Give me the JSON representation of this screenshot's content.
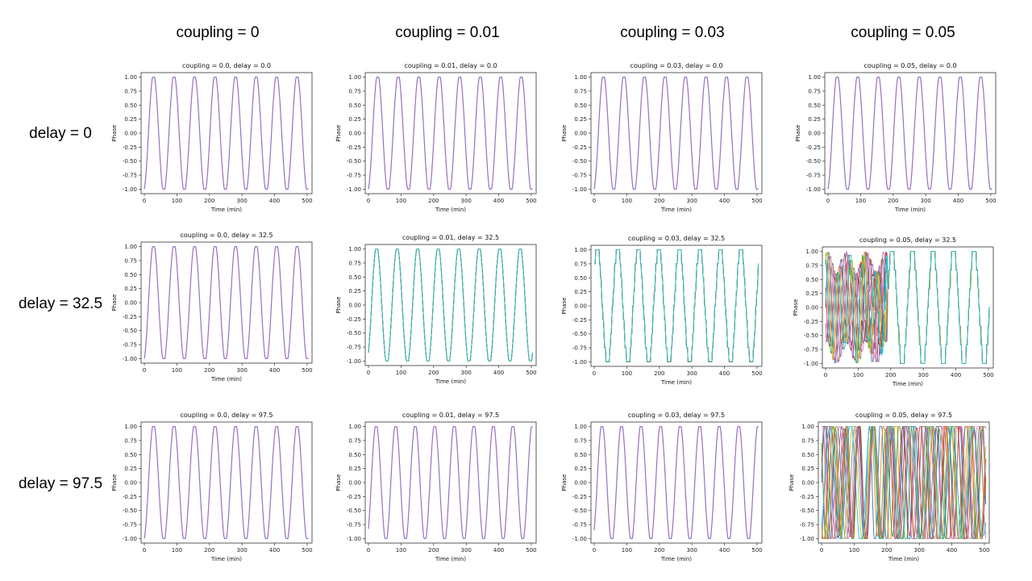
{
  "column_headers": [
    "coupling = 0",
    "coupling = 0.01",
    "coupling = 0.03",
    "coupling = 0.05"
  ],
  "row_headers": [
    "delay = 0",
    "delay = 32.5",
    "delay = 97.5"
  ],
  "colors": {
    "single_trace": "#9467bd",
    "palette": [
      "#1f77b4",
      "#ff7f0e",
      "#2ca02c",
      "#d62728",
      "#9467bd",
      "#8c564b",
      "#e377c2",
      "#7f7f7f",
      "#bcbd22",
      "#17becf"
    ]
  },
  "chart_data": [
    {
      "type": "line",
      "title": "coupling = 0.0, delay = 0.0",
      "coupling": 0,
      "delay": 0,
      "xlabel": "Time (min)",
      "ylabel": "Phase",
      "xlim": [
        0,
        500
      ],
      "ylim": [
        -1.0,
        1.0
      ],
      "xticks": [
        0,
        100,
        200,
        300,
        400,
        500
      ],
      "yticks": [
        -1.0,
        -0.75,
        -0.5,
        -0.25,
        0.0,
        0.25,
        0.5,
        0.75,
        1.0
      ],
      "period_min": 63,
      "x_range": [
        0,
        505
      ],
      "start_phase": -0.95,
      "end_phase": 0.08,
      "dynamics": "synchronized",
      "num_series": 1
    },
    {
      "type": "line",
      "title": "coupling = 0.01, delay = 0.0",
      "coupling": 0.01,
      "delay": 0,
      "xlabel": "Time (min)",
      "ylabel": "Phase",
      "xlim": [
        0,
        500
      ],
      "ylim": [
        -1.0,
        1.0
      ],
      "xticks": [
        0,
        100,
        200,
        300,
        400,
        500
      ],
      "yticks": [
        -1.0,
        -0.75,
        -0.5,
        -0.25,
        0.0,
        0.25,
        0.5,
        0.75,
        1.0
      ],
      "period_min": 63,
      "x_range": [
        0,
        505
      ],
      "start_phase": -0.95,
      "end_phase": 0.08,
      "dynamics": "synchronized",
      "num_series": 1
    },
    {
      "type": "line",
      "title": "coupling = 0.03, delay = 0.0",
      "coupling": 0.03,
      "delay": 0,
      "xlabel": "Time (min)",
      "ylabel": "Phase",
      "xlim": [
        0,
        500
      ],
      "ylim": [
        -1.0,
        1.0
      ],
      "xticks": [
        0,
        100,
        200,
        300,
        400,
        500
      ],
      "yticks": [
        -1.0,
        -0.75,
        -0.5,
        -0.25,
        0.0,
        0.25,
        0.5,
        0.75,
        1.0
      ],
      "period_min": 63,
      "x_range": [
        0,
        505
      ],
      "start_phase": -0.95,
      "end_phase": 0.08,
      "dynamics": "synchronized",
      "num_series": 1
    },
    {
      "type": "line",
      "title": "coupling = 0.05, delay = 0.0",
      "coupling": 0.05,
      "delay": 0,
      "xlabel": "Time (min)",
      "ylabel": "Phase",
      "xlim": [
        0,
        500
      ],
      "ylim": [
        -1.0,
        1.0
      ],
      "xticks": [
        0,
        100,
        200,
        300,
        400,
        500
      ],
      "yticks": [
        -1.0,
        -0.75,
        -0.5,
        -0.25,
        0.0,
        0.25,
        0.5,
        0.75,
        1.0
      ],
      "period_min": 63,
      "x_range": [
        0,
        505
      ],
      "start_phase": -0.95,
      "end_phase": 0.08,
      "dynamics": "synchronized",
      "num_series": 1
    },
    {
      "type": "line",
      "title": "coupling = 0.0, delay = 32.5",
      "coupling": 0,
      "delay": 32.5,
      "xlabel": "Time (min)",
      "ylabel": "Phase",
      "xlim": [
        0,
        500
      ],
      "ylim": [
        -1.0,
        1.0
      ],
      "xticks": [
        0,
        100,
        200,
        300,
        400,
        500
      ],
      "yticks": [
        -1.0,
        -0.75,
        -0.5,
        -0.25,
        0.0,
        0.25,
        0.5,
        0.75,
        1.0
      ],
      "period_min": 63,
      "x_range": [
        0,
        505
      ],
      "start_phase": -0.95,
      "end_phase": 0.08,
      "dynamics": "synchronized",
      "num_series": 1
    },
    {
      "type": "line",
      "title": "coupling = 0.01, delay = 32.5",
      "coupling": 0.01,
      "delay": 32.5,
      "xlabel": "Time (min)",
      "ylabel": "Phase",
      "xlim": [
        0,
        500
      ],
      "ylim": [
        -1.0,
        1.0
      ],
      "xticks": [
        0,
        100,
        200,
        300,
        400,
        500
      ],
      "yticks": [
        -1.0,
        -0.75,
        -0.5,
        -0.25,
        0.0,
        0.25,
        0.5,
        0.75,
        1.0
      ],
      "period_min": 63,
      "x_range": [
        0,
        505
      ],
      "start_phase": -0.8,
      "end_phase": 0.85,
      "dynamics": "near-synchronized",
      "num_series": 10
    },
    {
      "type": "line",
      "title": "coupling = 0.03, delay = 32.5",
      "coupling": 0.03,
      "delay": 32.5,
      "xlabel": "Time (min)",
      "ylabel": "Phase",
      "xlim": [
        0,
        500
      ],
      "ylim": [
        -1.0,
        1.0
      ],
      "xticks": [
        0,
        100,
        200,
        300,
        400,
        500
      ],
      "yticks": [
        -1.0,
        -0.75,
        -0.5,
        -0.25,
        0.0,
        0.25,
        0.5,
        0.75,
        1.0
      ],
      "period_min": 63,
      "x_range": [
        0,
        505
      ],
      "start_phase": 0.6,
      "end_phase": -0.9,
      "dynamics": "stepped",
      "num_series": 10
    },
    {
      "type": "line",
      "title": "coupling = 0.05, delay = 32.5",
      "coupling": 0.05,
      "delay": 32.5,
      "xlabel": "Time (min)",
      "ylabel": "Phase",
      "xlim": [
        0,
        500
      ],
      "ylim": [
        -1.0,
        1.0
      ],
      "xticks": [
        0,
        100,
        200,
        300,
        400,
        500
      ],
      "yticks": [
        -1.0,
        -0.75,
        -0.5,
        -0.25,
        0.0,
        0.25,
        0.5,
        0.75,
        1.0
      ],
      "period_min": 63,
      "x_range": [
        0,
        505
      ],
      "start_phase": 0.0,
      "end_phase": -0.3,
      "dynamics": "chaotic-then-stepped",
      "num_series": 10
    },
    {
      "type": "line",
      "title": "coupling = 0.0, delay = 97.5",
      "coupling": 0,
      "delay": 97.5,
      "xlabel": "Time (min)",
      "ylabel": "Phase",
      "xlim": [
        0,
        500
      ],
      "ylim": [
        -1.0,
        1.0
      ],
      "xticks": [
        0,
        100,
        200,
        300,
        400,
        500
      ],
      "yticks": [
        -1.0,
        -0.75,
        -0.5,
        -0.25,
        0.0,
        0.25,
        0.5,
        0.75,
        1.0
      ],
      "period_min": 63,
      "x_range": [
        0,
        505
      ],
      "start_phase": -0.95,
      "end_phase": 0.08,
      "dynamics": "synchronized",
      "num_series": 1
    },
    {
      "type": "line",
      "title": "coupling = 0.01, delay = 97.5",
      "coupling": 0.01,
      "delay": 97.5,
      "xlabel": "Time (min)",
      "ylabel": "Phase",
      "xlim": [
        0,
        500
      ],
      "ylim": [
        -1.0,
        1.0
      ],
      "xticks": [
        0,
        100,
        200,
        300,
        400,
        500
      ],
      "yticks": [
        -1.0,
        -0.75,
        -0.5,
        -0.25,
        0.0,
        0.25,
        0.5,
        0.75,
        1.0
      ],
      "period_min": 60,
      "x_range": [
        0,
        505
      ],
      "start_phase": -0.78,
      "end_phase": -0.8,
      "dynamics": "synchronized",
      "num_series": 1
    },
    {
      "type": "line",
      "title": "coupling = 0.03, delay = 97.5",
      "coupling": 0.03,
      "delay": 97.5,
      "xlabel": "Time (min)",
      "ylabel": "Phase",
      "xlim": [
        0,
        500
      ],
      "ylim": [
        -1.0,
        1.0
      ],
      "xticks": [
        0,
        100,
        200,
        300,
        400,
        500
      ],
      "yticks": [
        -1.0,
        -0.75,
        -0.5,
        -0.25,
        0.0,
        0.25,
        0.5,
        0.75,
        1.0
      ],
      "period_min": 60,
      "x_range": [
        0,
        505
      ],
      "start_phase": -0.8,
      "end_phase": -0.75,
      "dynamics": "synchronized",
      "num_series": 1
    },
    {
      "type": "line",
      "title": "coupling = 0.05, delay = 97.5",
      "coupling": 0.05,
      "delay": 97.5,
      "xlabel": "Time (min)",
      "ylabel": "Phase",
      "xlim": [
        0,
        500
      ],
      "ylim": [
        -1.0,
        1.0
      ],
      "xticks": [
        0,
        100,
        200,
        300,
        400,
        500
      ],
      "yticks": [
        -1.0,
        -0.75,
        -0.5,
        -0.25,
        0.0,
        0.25,
        0.5,
        0.75,
        1.0
      ],
      "period_min": 63,
      "x_range": [
        0,
        505
      ],
      "start_phase": 0.5,
      "end_phase": -0.6,
      "dynamics": "chaotic",
      "num_series": 10
    }
  ]
}
